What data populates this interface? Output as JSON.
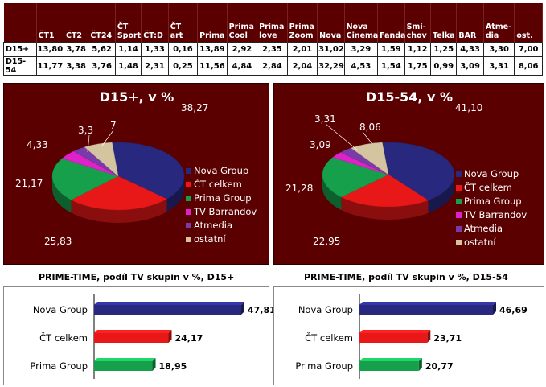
{
  "table": {
    "columns": [
      "",
      "ČT1",
      "ČT2",
      "ČT24",
      "ČT Sport",
      "ČT:D",
      "ČT art",
      "Prima",
      "Prima Cool",
      "Prima love",
      "Prima Zoom",
      "Nova",
      "Nova Cinema",
      "Fanda",
      "Smí-chov",
      "Telka",
      "BAR",
      "Atme-dia",
      "ost."
    ],
    "header_lines": [
      [
        ""
      ],
      [
        "ČT1"
      ],
      [
        "ČT2"
      ],
      [
        "ČT24"
      ],
      [
        "ČT",
        "Sport"
      ],
      [
        "ČT:D"
      ],
      [
        "ČT art"
      ],
      [
        "Prima"
      ],
      [
        "Prima",
        "Cool"
      ],
      [
        "Prima",
        "love"
      ],
      [
        "Prima",
        "Zoom"
      ],
      [
        "Nova"
      ],
      [
        "Nova",
        "Cinema"
      ],
      [
        "Fanda"
      ],
      [
        "Smí-",
        "chov"
      ],
      [
        "Telka"
      ],
      [
        "BAR"
      ],
      [
        "Atme-",
        "dia"
      ],
      [
        "ost."
      ]
    ],
    "rows": [
      {
        "label": "D15+",
        "values": [
          "13,80",
          "3,78",
          "5,62",
          "1,14",
          "1,33",
          "0,16",
          "13,89",
          "2,92",
          "2,35",
          "2,01",
          "31,02",
          "3,29",
          "1,59",
          "1,12",
          "1,25",
          "4,33",
          "3,30",
          "7,00"
        ]
      },
      {
        "label": "D15-54",
        "values": [
          "11,77",
          "3,38",
          "3,76",
          "1,48",
          "2,31",
          "0,25",
          "11,56",
          "4,84",
          "2,84",
          "2,04",
          "32,29",
          "4,53",
          "1,54",
          "1,75",
          "0,99",
          "3,09",
          "3,31",
          "8,06"
        ]
      }
    ]
  },
  "chart_data": [
    {
      "type": "pie",
      "title": "D15+, v %",
      "labels": [
        "Nova Group",
        "ČT celkem",
        "Prima Group",
        "TV Barrandov",
        "Atmedia",
        "ostatní"
      ],
      "values": [
        38.27,
        25.83,
        21.17,
        4.33,
        3.3,
        7
      ],
      "value_labels": [
        "38,27",
        "25,83",
        "21,17",
        "4,33",
        "3,3",
        "7"
      ],
      "colors": [
        "#28287e",
        "#e81818",
        "#16a04c",
        "#e020c8",
        "#7a3aa8",
        "#d4c4a0"
      ],
      "legend_position": "right"
    },
    {
      "type": "pie",
      "title": "D15-54, v %",
      "labels": [
        "Nova Group",
        "ČT celkem",
        "Prima Group",
        "TV Barrandov",
        "Atmedia",
        "ostatní"
      ],
      "values": [
        41.1,
        22.95,
        21.28,
        3.09,
        3.31,
        8.06
      ],
      "value_labels": [
        "41,10",
        "22,95",
        "21,28",
        "3,09",
        "3,31",
        "8,06"
      ],
      "colors": [
        "#28287e",
        "#e81818",
        "#16a04c",
        "#e020c8",
        "#7a3aa8",
        "#d4c4a0"
      ],
      "legend_position": "right"
    },
    {
      "type": "bar",
      "orientation": "horizontal",
      "title": "PRIME-TIME, podíl TV skupin v %, D15+",
      "categories": [
        "Nova Group",
        "ČT celkem",
        "Prima Group"
      ],
      "values": [
        47.81,
        24.17,
        18.95
      ],
      "value_labels": [
        "47,81",
        "24,17",
        "18,95"
      ],
      "colors": [
        "#28287e",
        "#e81818",
        "#16a04c"
      ]
    },
    {
      "type": "bar",
      "orientation": "horizontal",
      "title": "PRIME-TIME, podíl TV skupin v %, D15-54",
      "categories": [
        "Nova Group",
        "ČT celkem",
        "Prima Group"
      ],
      "values": [
        46.69,
        23.71,
        20.77
      ],
      "value_labels": [
        "46,69",
        "23,71",
        "20,77"
      ],
      "colors": [
        "#28287e",
        "#e81818",
        "#16a04c"
      ]
    }
  ]
}
